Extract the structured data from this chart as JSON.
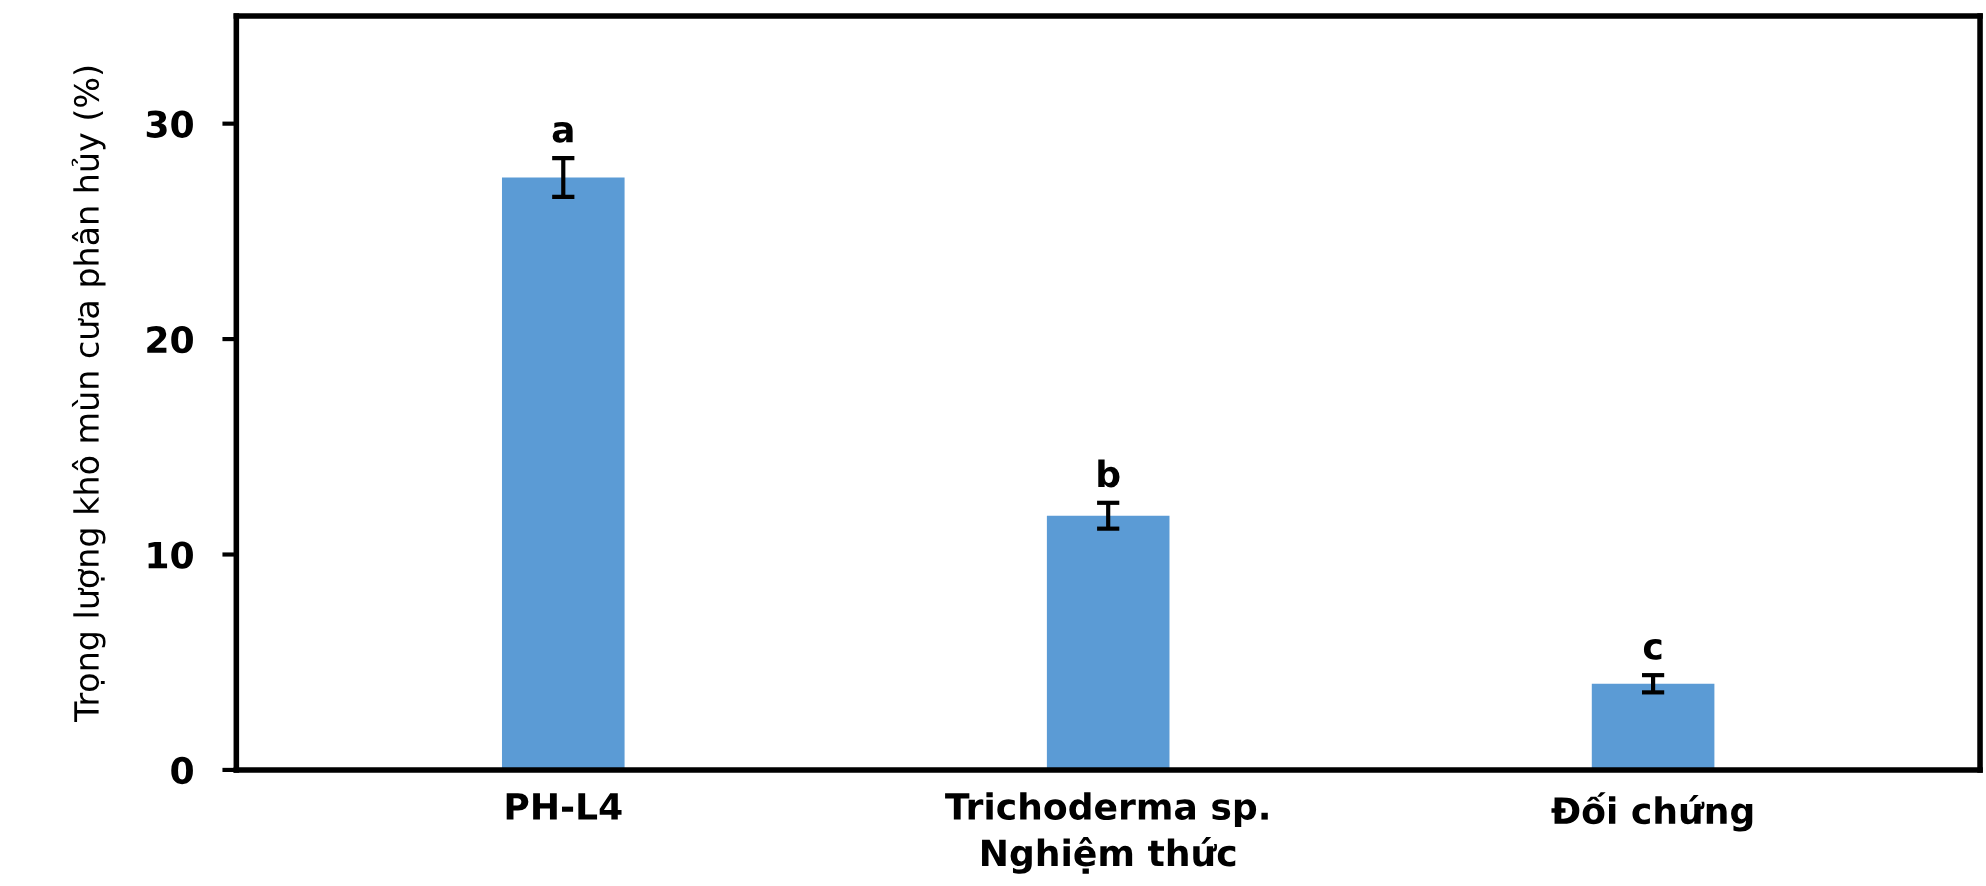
{
  "chart_data": {
    "type": "bar",
    "xlabel": "Nghiệm thức",
    "ylabel": "Trọng lượng khô mùn cưa phân hủy (%)",
    "categories": [
      "PH-L4",
      "Trichoderma sp.",
      "Đối chứng"
    ],
    "values": [
      27.5,
      11.8,
      4.0
    ],
    "errors": [
      0.9,
      0.6,
      0.4
    ],
    "color": "#5b9bd5",
    "ylim": [
      0,
      35
    ],
    "yticks": [
      0,
      10,
      20,
      30
    ],
    "grid": false,
    "annotations": [
      "a",
      "b",
      "c"
    ]
  }
}
